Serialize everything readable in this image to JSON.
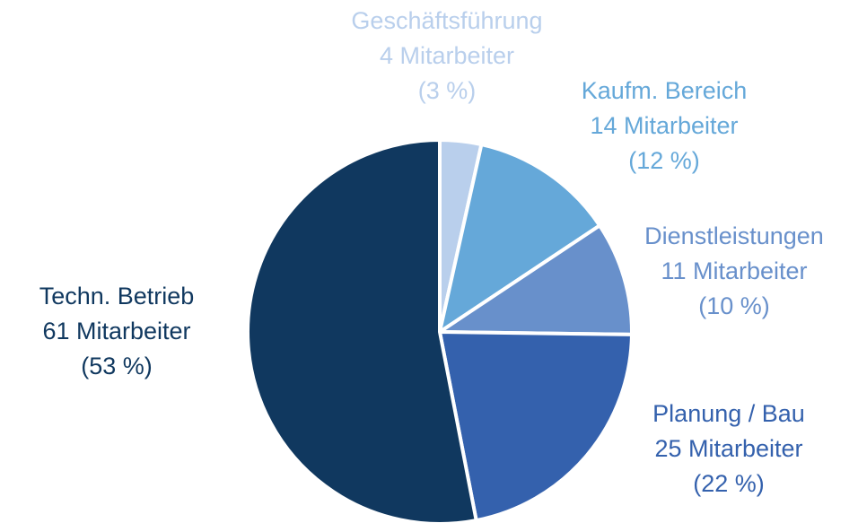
{
  "chart_data": {
    "type": "pie",
    "categories": [
      "Geschäftsführung",
      "Kaufm. Bereich",
      "Dienstleistungen",
      "Planung / Bau",
      "Techn. Betrieb"
    ],
    "values": [
      4,
      14,
      11,
      25,
      61
    ],
    "value_labels": [
      "4 Mitarbeiter",
      "14 Mitarbeiter",
      "11 Mitarbeiter",
      "25 Mitarbeiter",
      "61 Mitarbeiter"
    ],
    "percent_labels": [
      "(3 %)",
      "(12 %)",
      "(10 %)",
      "(22 %)",
      "(53 %)"
    ],
    "colors": [
      "#b9cfec",
      "#65a8d9",
      "#6890cb",
      "#3461ad",
      "#10385f"
    ]
  }
}
